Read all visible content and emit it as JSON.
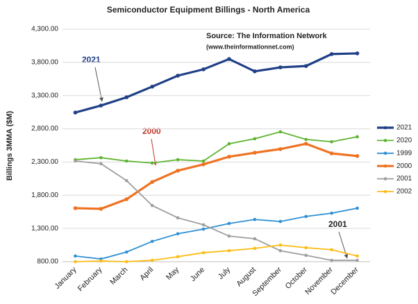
{
  "chart_data": {
    "type": "line",
    "title": "Semiconductor Equipment Billings  - North America",
    "annotations": [
      "Source: The Information Network",
      "(www.theinformationnet.com)",
      "2021",
      "2000",
      "2001"
    ],
    "y_label": "Billings 3MMA ($M)",
    "categories": [
      "January",
      "February",
      "March",
      "April",
      "May",
      "June",
      "July",
      "August",
      "September",
      "October",
      "November",
      "December"
    ],
    "series": [
      {
        "name": "2021",
        "color": "#1f3f86",
        "values": [
          3045,
          3150,
          3275,
          3435,
          3600,
          3695,
          3850,
          3665,
          3725,
          3745,
          3925,
          3935
        ]
      },
      {
        "name": "2020",
        "color": "#5cb32e",
        "values": [
          2335,
          2365,
          2315,
          2285,
          2335,
          2315,
          2575,
          2650,
          2755,
          2640,
          2605,
          2680
        ]
      },
      {
        "name": "1999",
        "color": "#2e8fd3",
        "values": [
          885,
          840,
          945,
          1105,
          1220,
          1290,
          1375,
          1435,
          1405,
          1480,
          1530,
          1605
        ]
      },
      {
        "name": "2000",
        "color": "#ee7222",
        "values": [
          1605,
          1595,
          1740,
          2000,
          2170,
          2265,
          2380,
          2440,
          2495,
          2575,
          2430,
          2390
        ]
      },
      {
        "name": "2001",
        "color": "#9e9e9e",
        "values": [
          2315,
          2275,
          2020,
          1645,
          1460,
          1355,
          1185,
          1145,
          965,
          895,
          820,
          820
        ]
      },
      {
        "name": "2002",
        "color": "#fcbc14",
        "values": [
          800,
          810,
          800,
          820,
          875,
          935,
          965,
          1000,
          1050,
          1010,
          980,
          885
        ]
      }
    ],
    "ylim": [
      800,
      4300
    ],
    "yticks": [
      {
        "value": 800,
        "label": "800.00"
      },
      {
        "value": 1300,
        "label": "1,300.00"
      },
      {
        "value": 1800,
        "label": "1,800.00"
      },
      {
        "value": 2300,
        "label": "2,300.00"
      },
      {
        "value": 2800,
        "label": "2,800.00"
      },
      {
        "value": 3300,
        "label": "3,300.00"
      },
      {
        "value": 3800,
        "label": "3,800.00"
      },
      {
        "value": 4300,
        "label": "4,300.00"
      }
    ],
    "grid": true,
    "legend": "right"
  }
}
